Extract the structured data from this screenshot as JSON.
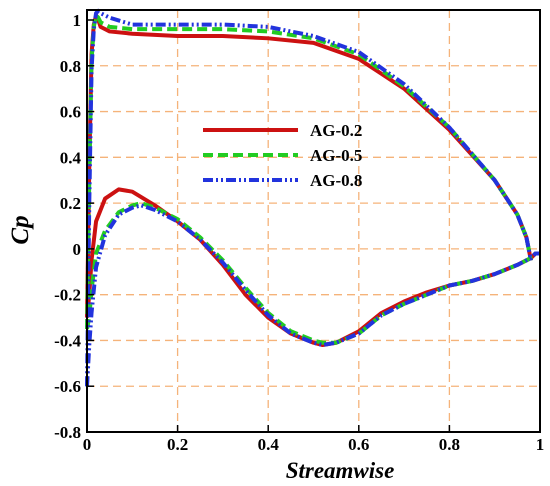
{
  "chart_data": {
    "type": "line",
    "title": "",
    "xlabel": "Streamwise",
    "ylabel": "Cp",
    "xlim": [
      0,
      1
    ],
    "ylim": [
      -0.8,
      1.05
    ],
    "x_ticks": [
      "0",
      "0.2",
      "0.4",
      "0.6",
      "0.8",
      "1"
    ],
    "y_ticks": [
      "1",
      "0.8",
      "0.6",
      "0.4",
      "0.2",
      "0",
      "-0.2",
      "-0.4",
      "-0.6",
      "-0.8"
    ],
    "grid": true,
    "legend_position": "center",
    "series": [
      {
        "name": "AG-0.2",
        "color": "#cc1111",
        "style": "solid",
        "upper": [
          [
            0.0,
            -0.3
          ],
          [
            0.005,
            0.35
          ],
          [
            0.01,
            0.85
          ],
          [
            0.015,
            0.98
          ],
          [
            0.02,
            1.02
          ],
          [
            0.025,
            1.0
          ],
          [
            0.03,
            0.97
          ],
          [
            0.05,
            0.95
          ],
          [
            0.1,
            0.94
          ],
          [
            0.2,
            0.93
          ],
          [
            0.3,
            0.93
          ],
          [
            0.4,
            0.92
          ],
          [
            0.5,
            0.9
          ],
          [
            0.6,
            0.83
          ],
          [
            0.7,
            0.7
          ],
          [
            0.8,
            0.52
          ],
          [
            0.9,
            0.3
          ],
          [
            0.95,
            0.15
          ],
          [
            0.97,
            0.05
          ],
          [
            0.98,
            -0.05
          ]
        ],
        "lower": [
          [
            0.0,
            -0.3
          ],
          [
            0.005,
            -0.2
          ],
          [
            0.01,
            -0.05
          ],
          [
            0.02,
            0.12
          ],
          [
            0.04,
            0.22
          ],
          [
            0.07,
            0.26
          ],
          [
            0.1,
            0.25
          ],
          [
            0.15,
            0.19
          ],
          [
            0.2,
            0.12
          ],
          [
            0.25,
            0.04
          ],
          [
            0.3,
            -0.07
          ],
          [
            0.35,
            -0.2
          ],
          [
            0.4,
            -0.3
          ],
          [
            0.45,
            -0.37
          ],
          [
            0.5,
            -0.41
          ],
          [
            0.52,
            -0.42
          ],
          [
            0.55,
            -0.41
          ],
          [
            0.6,
            -0.36
          ],
          [
            0.65,
            -0.28
          ],
          [
            0.7,
            -0.23
          ],
          [
            0.75,
            -0.19
          ],
          [
            0.8,
            -0.16
          ],
          [
            0.85,
            -0.14
          ],
          [
            0.9,
            -0.11
          ],
          [
            0.95,
            -0.07
          ],
          [
            0.98,
            -0.04
          ],
          [
            0.99,
            -0.02
          ],
          [
            1.0,
            -0.02
          ]
        ]
      },
      {
        "name": "AG-0.5",
        "color": "#22cc22",
        "style": "dashed",
        "upper": [
          [
            0.0,
            -0.35
          ],
          [
            0.005,
            0.3
          ],
          [
            0.01,
            0.82
          ],
          [
            0.015,
            0.97
          ],
          [
            0.02,
            1.02
          ],
          [
            0.025,
            1.01
          ],
          [
            0.03,
            0.99
          ],
          [
            0.05,
            0.97
          ],
          [
            0.1,
            0.96
          ],
          [
            0.2,
            0.96
          ],
          [
            0.3,
            0.96
          ],
          [
            0.4,
            0.95
          ],
          [
            0.5,
            0.92
          ],
          [
            0.6,
            0.85
          ],
          [
            0.7,
            0.71
          ],
          [
            0.8,
            0.53
          ],
          [
            0.9,
            0.3
          ],
          [
            0.95,
            0.15
          ],
          [
            0.97,
            0.05
          ],
          [
            0.98,
            -0.05
          ]
        ],
        "lower": [
          [
            0.0,
            -0.35
          ],
          [
            0.005,
            -0.3
          ],
          [
            0.01,
            -0.18
          ],
          [
            0.02,
            -0.02
          ],
          [
            0.04,
            0.08
          ],
          [
            0.07,
            0.16
          ],
          [
            0.1,
            0.19
          ],
          [
            0.12,
            0.2
          ],
          [
            0.15,
            0.18
          ],
          [
            0.2,
            0.13
          ],
          [
            0.25,
            0.05
          ],
          [
            0.3,
            -0.05
          ],
          [
            0.35,
            -0.17
          ],
          [
            0.4,
            -0.28
          ],
          [
            0.45,
            -0.36
          ],
          [
            0.5,
            -0.4
          ],
          [
            0.52,
            -0.41
          ],
          [
            0.55,
            -0.41
          ],
          [
            0.6,
            -0.37
          ],
          [
            0.65,
            -0.29
          ],
          [
            0.7,
            -0.24
          ],
          [
            0.75,
            -0.2
          ],
          [
            0.8,
            -0.16
          ],
          [
            0.85,
            -0.14
          ],
          [
            0.9,
            -0.11
          ],
          [
            0.95,
            -0.07
          ],
          [
            0.98,
            -0.04
          ],
          [
            0.99,
            -0.02
          ],
          [
            1.0,
            -0.02
          ]
        ]
      },
      {
        "name": "AG-0.8",
        "color": "#2233dd",
        "style": "dashdotdot",
        "upper": [
          [
            0.0,
            -0.6
          ],
          [
            0.005,
            0.2
          ],
          [
            0.01,
            0.78
          ],
          [
            0.015,
            0.96
          ],
          [
            0.02,
            1.03
          ],
          [
            0.025,
            1.04
          ],
          [
            0.03,
            1.03
          ],
          [
            0.05,
            1.01
          ],
          [
            0.1,
            0.98
          ],
          [
            0.2,
            0.98
          ],
          [
            0.3,
            0.98
          ],
          [
            0.4,
            0.97
          ],
          [
            0.5,
            0.93
          ],
          [
            0.6,
            0.86
          ],
          [
            0.7,
            0.72
          ],
          [
            0.8,
            0.53
          ],
          [
            0.9,
            0.3
          ],
          [
            0.95,
            0.15
          ],
          [
            0.97,
            0.05
          ],
          [
            0.98,
            -0.05
          ]
        ],
        "lower": [
          [
            0.0,
            -0.6
          ],
          [
            0.005,
            -0.42
          ],
          [
            0.01,
            -0.28
          ],
          [
            0.02,
            -0.08
          ],
          [
            0.04,
            0.06
          ],
          [
            0.07,
            0.15
          ],
          [
            0.1,
            0.18
          ],
          [
            0.12,
            0.19
          ],
          [
            0.15,
            0.17
          ],
          [
            0.2,
            0.12
          ],
          [
            0.25,
            0.04
          ],
          [
            0.3,
            -0.06
          ],
          [
            0.35,
            -0.18
          ],
          [
            0.4,
            -0.29
          ],
          [
            0.45,
            -0.37
          ],
          [
            0.5,
            -0.41
          ],
          [
            0.52,
            -0.42
          ],
          [
            0.55,
            -0.41
          ],
          [
            0.6,
            -0.37
          ],
          [
            0.65,
            -0.29
          ],
          [
            0.7,
            -0.24
          ],
          [
            0.75,
            -0.2
          ],
          [
            0.8,
            -0.16
          ],
          [
            0.85,
            -0.14
          ],
          [
            0.9,
            -0.11
          ],
          [
            0.95,
            -0.07
          ],
          [
            0.98,
            -0.04
          ],
          [
            0.99,
            -0.02
          ],
          [
            1.0,
            -0.02
          ]
        ]
      }
    ]
  }
}
